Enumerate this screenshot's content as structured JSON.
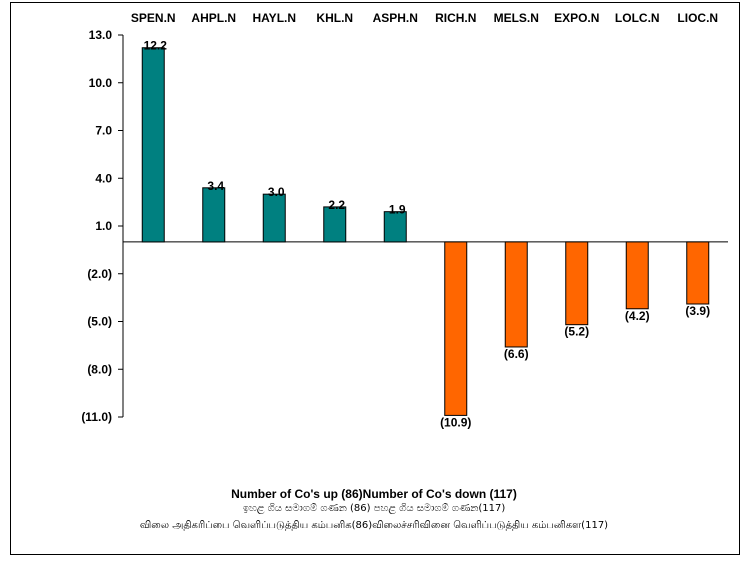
{
  "chart_data": {
    "type": "bar",
    "categories": [
      "SPEN.N",
      "AHPL.N",
      "HAYL.N",
      "KHL.N",
      "ASPH.N",
      "RICH.N",
      "MELS.N",
      "EXPO.N",
      "LOLC.N",
      "LIOC.N"
    ],
    "values": [
      12.2,
      3.4,
      3.0,
      2.2,
      1.9,
      -10.9,
      -6.6,
      -5.2,
      -4.2,
      -3.9
    ],
    "value_labels": [
      "12.2",
      "3.4",
      "3.0",
      "2.2",
      "1.9",
      "(10.9)",
      "(6.6)",
      "(5.2)",
      "(4.2)",
      "(3.9)"
    ],
    "y_ticks": [
      13.0,
      10.0,
      7.0,
      4.0,
      1.0,
      -2.0,
      -5.0,
      -8.0,
      -11.0
    ],
    "y_tick_labels": [
      "13.0",
      "10.0",
      "7.0",
      "4.0",
      "1.0",
      "(2.0)",
      "(5.0)",
      "(8.0)",
      "(11.0)"
    ],
    "ylim": [
      -11.0,
      13.0
    ],
    "grid": false,
    "category_labels_position": "top",
    "colors": {
      "positive": "#008080",
      "negative": "#FF6600"
    }
  },
  "footer": {
    "summary_english": "Number of Co's up (86)Number of Co's down  (117)",
    "summary_sinhala": "ඉහළ ගිය සමාගම් ගණන (86) පහළ ගිය සමාගම් ගණන(117)",
    "summary_tamil": "விலை அதிகரிப்பை வெளிப்படுத்திய கம்பனிக(86)விலைச்சரிவினை வெளிப்படுத்திய கம்பனிகள(117)"
  }
}
